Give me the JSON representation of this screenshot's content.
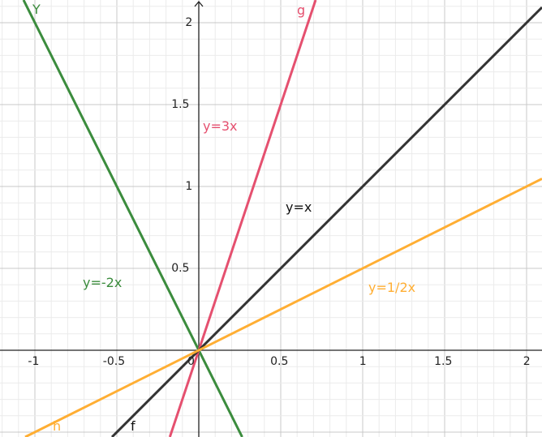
{
  "graph": {
    "x_range": [
      -1.2,
      2.1
    ],
    "y_range": [
      -0.53,
      2.14
    ],
    "major_step": 0.5,
    "minor_step": 0.1,
    "x_ticks": [
      "-1",
      "-0.5",
      "0",
      "0.5",
      "1",
      "1.5",
      "2"
    ],
    "y_ticks": [
      "0.5",
      "1",
      "1.5",
      "2"
    ],
    "lines": [
      {
        "name": "Y",
        "equation": "y=-2x",
        "slope": -2,
        "color": "#3b8c3d"
      },
      {
        "name": "g",
        "equation": "y=3x",
        "slope": 3,
        "color": "#e5506f"
      },
      {
        "name": "f",
        "equation": "y=x",
        "slope": 1,
        "color": "#333333"
      },
      {
        "name": "h",
        "equation": "y=1/2x",
        "slope": 0.5,
        "color": "#ffae33"
      }
    ]
  }
}
